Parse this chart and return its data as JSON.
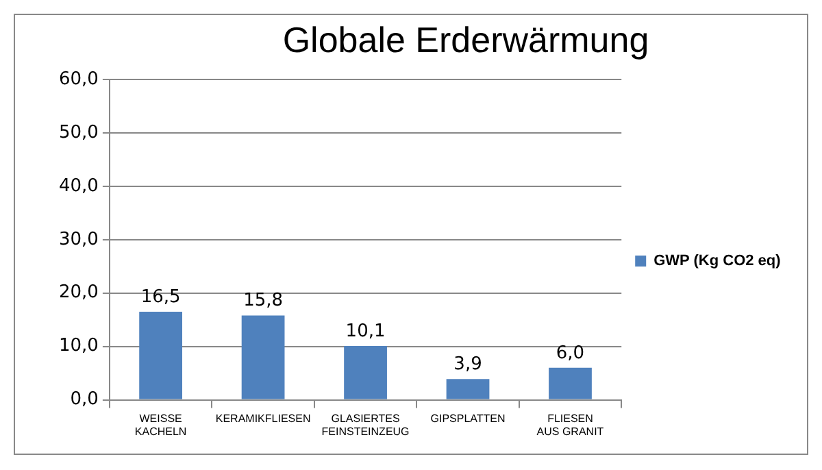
{
  "chart_data": {
    "type": "bar",
    "title": "Globale Erderwärmung",
    "categories": [
      "WEISSE\nKACHELN",
      "KERAMIKFLIESEN",
      "GLASIERTES\nFEINSTEINZEUG",
      "GIPSPLATTEN",
      "FLIESEN\nAUS GRANIT"
    ],
    "series": [
      {
        "name": "GWP (Kg CO2 eq)",
        "color": "#4f81bd",
        "values": [
          16.5,
          15.8,
          10.1,
          3.9,
          6.0
        ],
        "value_labels": [
          "16,5",
          "15,8",
          "10,1",
          "3,9",
          "6,0"
        ]
      }
    ],
    "ylim": [
      0,
      60
    ],
    "yticks": [
      {
        "value": 0,
        "label": "0,0"
      },
      {
        "value": 10,
        "label": "10,0"
      },
      {
        "value": 20,
        "label": "20,0"
      },
      {
        "value": 30,
        "label": "30,0"
      },
      {
        "value": 40,
        "label": "40,0"
      },
      {
        "value": 50,
        "label": "50,0"
      },
      {
        "value": 60,
        "label": "60,0"
      }
    ],
    "grid": "y",
    "legend": "right"
  }
}
